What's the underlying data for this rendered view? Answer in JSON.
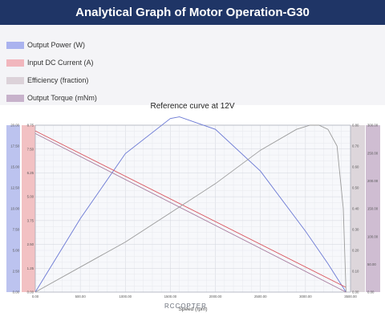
{
  "header": {
    "title": "Analytical Graph of Motor Operation-G30"
  },
  "brand": "RCCOPTER",
  "colors": {
    "header_bg": "#1f3566",
    "power": "#6a78d4",
    "current": "#d9535c",
    "efficiency": "#9b9b9b",
    "torque": "#a67a9d",
    "power_axis_bg": "#bcc3ef",
    "current_axis_bg": "#f2c1c3",
    "efficiency_axis_bg": "#ddd6db",
    "torque_axis_bg": "#cfbdd2"
  },
  "chart_data": {
    "type": "line",
    "title": "Reference curve at 12V",
    "xlabel": "Speed (rpm)",
    "xlim": [
      0,
      3500
    ],
    "x_ticks": [
      "0.00",
      "500.00",
      "1000.00",
      "1500.00",
      "2000.00",
      "2500.00",
      "3000.00",
      "3500.00"
    ],
    "x_tick_values": [
      0,
      500,
      1000,
      1500,
      2000,
      2500,
      3000,
      3500
    ],
    "grid": true,
    "axes": {
      "power": {
        "ylim": [
          0,
          20
        ],
        "ticks": [
          "0.00",
          "2.50",
          "5.00",
          "7.50",
          "10.00",
          "12.50",
          "15.00",
          "17.50",
          "20.00"
        ]
      },
      "current": {
        "ylim": [
          0,
          8.75
        ],
        "ticks": [
          "0.00",
          "1.25",
          "2.50",
          "3.75",
          "5.00",
          "6.25",
          "7.50",
          "8.75"
        ]
      },
      "efficiency": {
        "ylim": [
          0,
          0.8
        ],
        "ticks": [
          "0.00",
          "0.10",
          "0.20",
          "0.30",
          "0.40",
          "0.50",
          "0.60",
          "0.70",
          "0.80"
        ]
      },
      "torque": {
        "ylim": [
          0,
          300
        ],
        "ticks": [
          "0.00",
          "50.00",
          "100.00",
          "150.00",
          "200.00",
          "250.00",
          "300.00"
        ]
      }
    },
    "series": [
      {
        "name": "Output Power (W)",
        "axis": "power",
        "x": [
          0,
          500,
          1000,
          1500,
          1600,
          2000,
          2500,
          3000,
          3250,
          3450
        ],
        "values": [
          0,
          8.8,
          16.6,
          20.8,
          21.0,
          19.5,
          14.5,
          7.3,
          3.4,
          0
        ]
      },
      {
        "name": "Input DC Current (A)",
        "axis": "current",
        "x": [
          0,
          3450
        ],
        "values": [
          8.45,
          0.25
        ]
      },
      {
        "name": "Efficiency (fraction)",
        "axis": "efficiency",
        "x": [
          0,
          500,
          1000,
          1500,
          2000,
          2500,
          2900,
          3050,
          3150,
          3250,
          3350,
          3420,
          3450
        ],
        "values": [
          0,
          0.12,
          0.24,
          0.38,
          0.52,
          0.68,
          0.78,
          0.8,
          0.8,
          0.78,
          0.7,
          0.4,
          0
        ]
      },
      {
        "name": "Output Torque (mNm)",
        "axis": "torque",
        "x": [
          0,
          3450
        ],
        "values": [
          285,
          0
        ]
      }
    ],
    "legend_position": "top-left"
  }
}
